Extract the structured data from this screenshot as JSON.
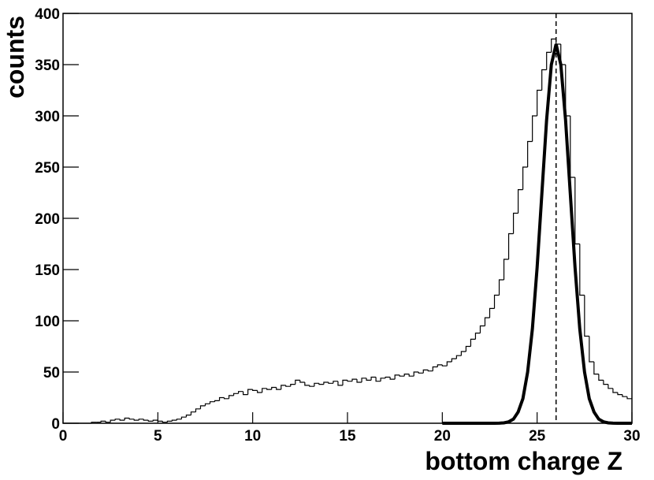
{
  "chart_data": {
    "type": "histogram",
    "x_label": "bottom charge Z",
    "y_label": "counts",
    "bins": [
      0,
      0.25,
      0.5,
      0.75,
      1,
      1.25,
      1.5,
      1.75,
      2,
      2.25,
      2.5,
      2.75,
      3,
      3.25,
      3.5,
      3.75,
      4,
      4.25,
      4.5,
      4.75,
      5,
      5.25,
      5.5,
      5.75,
      6,
      6.25,
      6.5,
      6.75,
      7,
      7.25,
      7.5,
      7.75,
      8,
      8.25,
      8.5,
      8.75,
      9,
      9.25,
      9.5,
      9.75,
      10,
      10.25,
      10.5,
      10.75,
      11,
      11.25,
      11.5,
      11.75,
      12,
      12.25,
      12.5,
      12.75,
      13,
      13.25,
      13.5,
      13.75,
      14,
      14.25,
      14.5,
      14.75,
      15,
      15.25,
      15.5,
      15.75,
      16,
      16.25,
      16.5,
      16.75,
      17,
      17.25,
      17.5,
      17.75,
      18,
      18.25,
      18.5,
      18.75,
      19,
      19.25,
      19.5,
      19.75,
      20,
      20.25,
      20.5,
      20.75,
      21,
      21.25,
      21.5,
      21.75,
      22,
      22.25,
      22.5,
      22.75,
      23,
      23.25,
      23.5,
      23.75,
      24,
      24.25,
      24.5,
      24.75,
      25,
      25.25,
      25.5,
      25.75,
      26,
      26.25,
      26.5,
      26.75,
      27,
      27.25,
      27.5,
      27.75,
      28,
      28.25,
      28.5,
      28.75,
      29,
      29.25,
      29.5,
      29.75,
      30
    ],
    "counts": [
      0,
      0,
      0,
      0,
      0,
      0,
      1,
      1,
      2,
      1,
      3,
      4,
      3,
      5,
      4,
      3,
      4,
      3,
      2,
      3,
      2,
      1,
      2,
      3,
      4,
      6,
      8,
      11,
      14,
      17,
      19,
      21,
      22,
      25,
      24,
      27,
      29,
      31,
      28,
      33,
      32,
      30,
      34,
      33,
      35,
      33,
      37,
      36,
      38,
      42,
      40,
      37,
      36,
      39,
      38,
      40,
      39,
      41,
      37,
      42,
      41,
      43,
      40,
      44,
      42,
      45,
      41,
      44,
      45,
      43,
      47,
      46,
      48,
      46,
      50,
      49,
      52,
      51,
      55,
      57,
      56,
      60,
      63,
      66,
      70,
      75,
      82,
      88,
      95,
      103,
      112,
      125,
      140,
      160,
      185,
      205,
      228,
      250,
      275,
      300,
      325,
      345,
      362,
      375,
      370,
      350,
      300,
      240,
      175,
      125,
      85,
      60,
      48,
      42,
      38,
      34,
      30,
      28,
      26,
      24
    ],
    "color": "#000000",
    "fit": {
      "x": [
        20,
        20.25,
        20.5,
        20.75,
        21,
        21.25,
        21.5,
        21.75,
        22,
        22.25,
        22.5,
        22.75,
        23,
        23.25,
        23.5,
        23.75,
        24,
        24.25,
        24.5,
        24.75,
        25,
        25.25,
        25.5,
        25.75,
        26,
        26.25,
        26.5,
        26.75,
        27,
        27.25,
        27.5,
        27.75,
        28,
        28.25,
        28.5,
        28.75,
        29,
        29.25,
        29.5,
        29.75,
        30
      ],
      "values": [
        0,
        0,
        0,
        0,
        0,
        0,
        0,
        0,
        0,
        0,
        0,
        0,
        0.1,
        0.4,
        1.4,
        4,
        11,
        24,
        50,
        92,
        152,
        224,
        296,
        350,
        370,
        350,
        296,
        224,
        152,
        92,
        50,
        24,
        11,
        4,
        1.4,
        0.4,
        0.1,
        0,
        0,
        0,
        0
      ],
      "color": "#000000"
    },
    "vline": 26,
    "xlim": [
      0,
      30
    ],
    "xticks": [
      0,
      5,
      10,
      15,
      20,
      25,
      30
    ],
    "ylim": [
      0,
      400
    ],
    "yticks": [
      0,
      50,
      100,
      150,
      200,
      250,
      300,
      350,
      400
    ]
  }
}
